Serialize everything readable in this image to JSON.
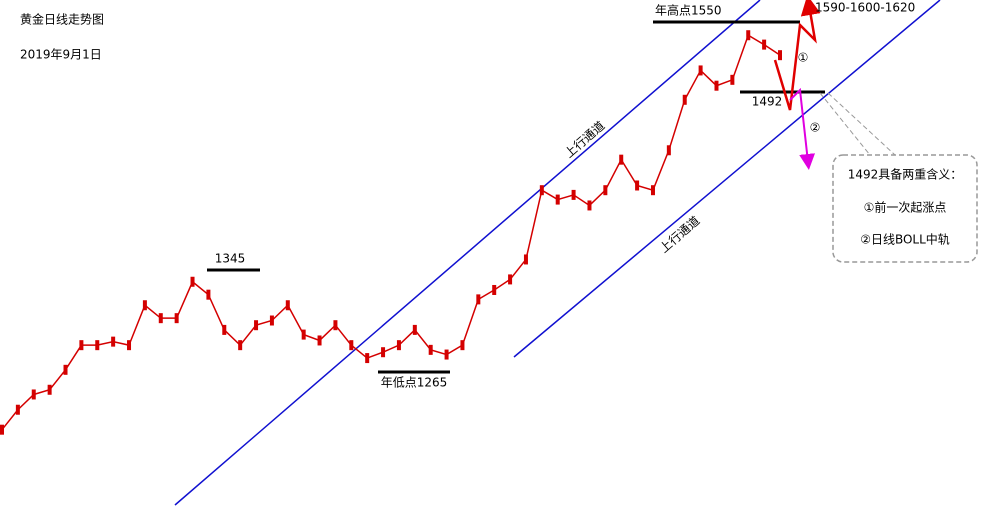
{
  "chart_data": {
    "type": "line",
    "title": "黄金日线走势图",
    "subtitle": "2019年9月1日",
    "values": [
      1203,
      1220,
      1233,
      1237,
      1254,
      1275,
      1275,
      1278,
      1275,
      1309,
      1298,
      1298,
      1329,
      1318,
      1288,
      1275,
      1292,
      1296,
      1309,
      1284,
      1279,
      1292,
      1275,
      1264,
      1269,
      1275,
      1288,
      1271,
      1267,
      1275,
      1314,
      1322,
      1331,
      1348,
      1407,
      1399,
      1403,
      1394,
      1407,
      1433,
      1411,
      1407,
      1441,
      1484,
      1509,
      1496,
      1501,
      1539,
      1531,
      1522
    ],
    "color": "#d40000",
    "ylim": [
      1138,
      1569
    ],
    "annotations": {
      "high": "年高点1550",
      "low": "年低点1265",
      "peak": "1345",
      "support": "1492",
      "target": "1590-1600-1620",
      "channel_upper": "上行通道",
      "channel_lower": "上行通道",
      "path1": "①",
      "path2": "②",
      "note_title": "1492具备两重含义：",
      "note_1": "①前一次起涨点",
      "note_2": "②日线BOLL中轨"
    }
  }
}
